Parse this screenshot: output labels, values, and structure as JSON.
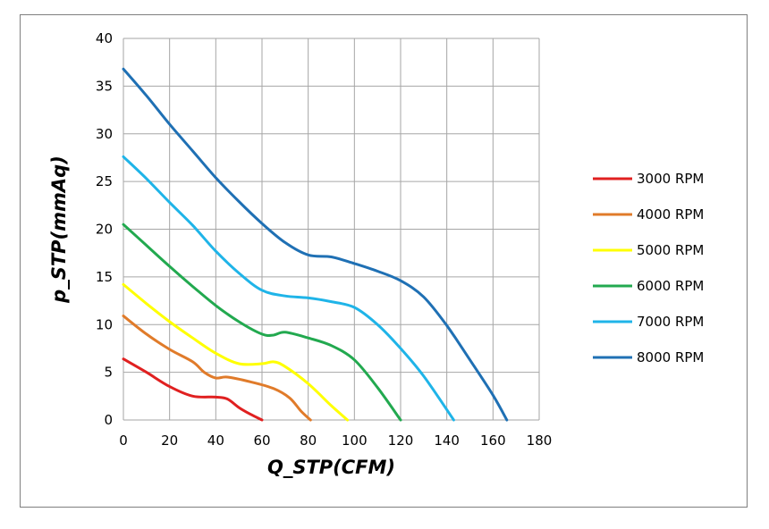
{
  "chart_data": {
    "type": "line",
    "title": "",
    "xlabel": "Q_STP(CFM)",
    "ylabel": "p_STP(mmAq)",
    "xlim": [
      0,
      180
    ],
    "ylim": [
      0,
      40
    ],
    "xticks": [
      0,
      20,
      40,
      60,
      80,
      100,
      120,
      140,
      160,
      180
    ],
    "yticks": [
      0,
      5,
      10,
      15,
      20,
      25,
      30,
      35,
      40
    ],
    "grid": true,
    "legend_position": "right",
    "series": [
      {
        "name": "3000 RPM",
        "color": "#e02020",
        "points": [
          [
            0,
            6.4
          ],
          [
            10,
            5.0
          ],
          [
            20,
            3.5
          ],
          [
            30,
            2.5
          ],
          [
            40,
            2.4
          ],
          [
            45,
            2.2
          ],
          [
            50,
            1.3
          ],
          [
            55,
            0.6
          ],
          [
            60,
            0.0
          ]
        ]
      },
      {
        "name": "4000 RPM",
        "color": "#e07b2a",
        "points": [
          [
            0,
            10.9
          ],
          [
            10,
            9.0
          ],
          [
            20,
            7.4
          ],
          [
            30,
            6.1
          ],
          [
            35,
            5.0
          ],
          [
            40,
            4.4
          ],
          [
            45,
            4.5
          ],
          [
            55,
            4.0
          ],
          [
            65,
            3.3
          ],
          [
            72,
            2.3
          ],
          [
            77,
            0.9
          ],
          [
            81,
            0.0
          ]
        ]
      },
      {
        "name": "5000 RPM",
        "color": "#ffff00",
        "points": [
          [
            0,
            14.2
          ],
          [
            10,
            12.2
          ],
          [
            20,
            10.3
          ],
          [
            30,
            8.6
          ],
          [
            40,
            7.0
          ],
          [
            50,
            5.9
          ],
          [
            60,
            5.9
          ],
          [
            65,
            6.1
          ],
          [
            70,
            5.6
          ],
          [
            80,
            3.8
          ],
          [
            90,
            1.5
          ],
          [
            97,
            0.0
          ]
        ]
      },
      {
        "name": "6000 RPM",
        "color": "#22a94f",
        "points": [
          [
            0,
            20.5
          ],
          [
            10,
            18.3
          ],
          [
            20,
            16.1
          ],
          [
            30,
            14.0
          ],
          [
            40,
            12.0
          ],
          [
            50,
            10.3
          ],
          [
            60,
            9.0
          ],
          [
            65,
            8.9
          ],
          [
            70,
            9.2
          ],
          [
            80,
            8.6
          ],
          [
            90,
            7.8
          ],
          [
            100,
            6.3
          ],
          [
            110,
            3.4
          ],
          [
            120,
            0.0
          ]
        ]
      },
      {
        "name": "7000 RPM",
        "color": "#1fb4e8",
        "points": [
          [
            0,
            27.6
          ],
          [
            10,
            25.3
          ],
          [
            20,
            22.8
          ],
          [
            30,
            20.4
          ],
          [
            40,
            17.7
          ],
          [
            50,
            15.4
          ],
          [
            60,
            13.6
          ],
          [
            70,
            13.0
          ],
          [
            80,
            12.8
          ],
          [
            90,
            12.4
          ],
          [
            100,
            11.8
          ],
          [
            110,
            10.0
          ],
          [
            120,
            7.5
          ],
          [
            130,
            4.6
          ],
          [
            143,
            0.0
          ]
        ]
      },
      {
        "name": "8000 RPM",
        "color": "#1f70b4",
        "points": [
          [
            0,
            36.8
          ],
          [
            10,
            34.0
          ],
          [
            20,
            31.0
          ],
          [
            30,
            28.2
          ],
          [
            40,
            25.4
          ],
          [
            50,
            22.9
          ],
          [
            60,
            20.6
          ],
          [
            70,
            18.6
          ],
          [
            80,
            17.3
          ],
          [
            90,
            17.1
          ],
          [
            100,
            16.4
          ],
          [
            110,
            15.6
          ],
          [
            120,
            14.6
          ],
          [
            130,
            12.9
          ],
          [
            140,
            9.9
          ],
          [
            150,
            6.3
          ],
          [
            160,
            2.6
          ],
          [
            166,
            0.0
          ]
        ]
      }
    ]
  }
}
